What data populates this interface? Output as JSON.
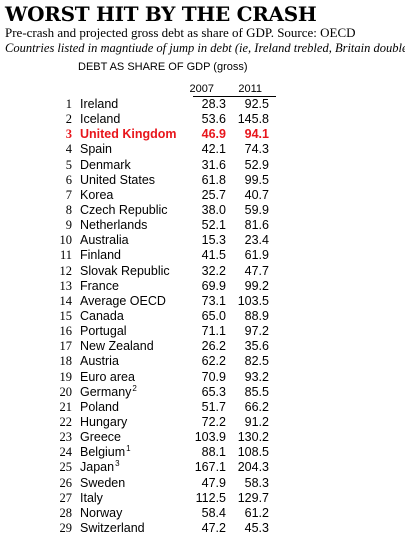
{
  "header": {
    "title": "WORST HIT BY THE CRASH",
    "subtitle": "Pre-crash and projected gross debt as share of GDP. Source: OECD",
    "note": "Countries listed in magntiude of jump in debt (ie, Ireland trebled, Britain doubled)"
  },
  "table": {
    "caption": "DEBT AS SHARE OF GDP (gross)",
    "columns": [
      "2007",
      "2011"
    ],
    "highlight_color": "#e8151b",
    "rows": [
      {
        "rank": "1",
        "country": "Ireland",
        "v2007": "28.3",
        "v2011": "92.5"
      },
      {
        "rank": "2",
        "country": "Iceland",
        "v2007": "53.6",
        "v2011": "145.8"
      },
      {
        "rank": "3",
        "country": "United Kingdom",
        "v2007": "46.9",
        "v2011": "94.1",
        "highlight": true
      },
      {
        "rank": "4",
        "country": "Spain",
        "v2007": "42.1",
        "v2011": "74.3"
      },
      {
        "rank": "5",
        "country": "Denmark",
        "v2007": "31.6",
        "v2011": "52.9"
      },
      {
        "rank": "6",
        "country": "United States",
        "v2007": "61.8",
        "v2011": "99.5"
      },
      {
        "rank": "7",
        "country": "Korea",
        "v2007": "25.7",
        "v2011": "40.7"
      },
      {
        "rank": "8",
        "country": "Czech Republic",
        "v2007": "38.0",
        "v2011": "59.9"
      },
      {
        "rank": "9",
        "country": "Netherlands",
        "v2007": "52.1",
        "v2011": "81.6"
      },
      {
        "rank": "10",
        "country": "Australia",
        "v2007": "15.3",
        "v2011": "23.4"
      },
      {
        "rank": "11",
        "country": "Finland",
        "v2007": "41.5",
        "v2011": "61.9"
      },
      {
        "rank": "12",
        "country": "Slovak Republic",
        "v2007": "32.2",
        "v2011": "47.7"
      },
      {
        "rank": "13",
        "country": "France",
        "v2007": "69.9",
        "v2011": "99.2"
      },
      {
        "rank": "14",
        "country": "Average OECD",
        "v2007": "73.1",
        "v2011": "103.5"
      },
      {
        "rank": "15",
        "country": "Canada",
        "v2007": "65.0",
        "v2011": "88.9"
      },
      {
        "rank": "16",
        "country": "Portugal",
        "v2007": "71.1",
        "v2011": "97.2"
      },
      {
        "rank": "17",
        "country": "New Zealand",
        "v2007": "26.2",
        "v2011": "35.6"
      },
      {
        "rank": "18",
        "country": "Austria",
        "v2007": "62.2",
        "v2011": "82.5"
      },
      {
        "rank": "19",
        "country": "Euro area",
        "v2007": "70.9",
        "v2011": "93.2"
      },
      {
        "rank": "20",
        "country": "Germany",
        "sup": "2",
        "v2007": "65.3",
        "v2011": "85.5"
      },
      {
        "rank": "21",
        "country": "Poland",
        "v2007": "51.7",
        "v2011": "66.2"
      },
      {
        "rank": "22",
        "country": "Hungary",
        "v2007": "72.2",
        "v2011": "91.2"
      },
      {
        "rank": "23",
        "country": "Greece",
        "v2007": "103.9",
        "v2011": "130.2"
      },
      {
        "rank": "24",
        "country": "Belgium",
        "sup": "1",
        "v2007": "88.1",
        "v2011": "108.5"
      },
      {
        "rank": "25",
        "country": "Japan",
        "sup": "3",
        "v2007": "167.1",
        "v2011": "204.3"
      },
      {
        "rank": "26",
        "country": "Sweden",
        "v2007": "47.9",
        "v2011": "58.3"
      },
      {
        "rank": "27",
        "country": "Italy",
        "v2007": "112.5",
        "v2011": "129.7"
      },
      {
        "rank": "28",
        "country": "Norway",
        "v2007": "58.4",
        "v2011": "61.2"
      },
      {
        "rank": "29",
        "country": "Switzerland",
        "v2007": "47.2",
        "v2011": "45.3"
      }
    ]
  }
}
